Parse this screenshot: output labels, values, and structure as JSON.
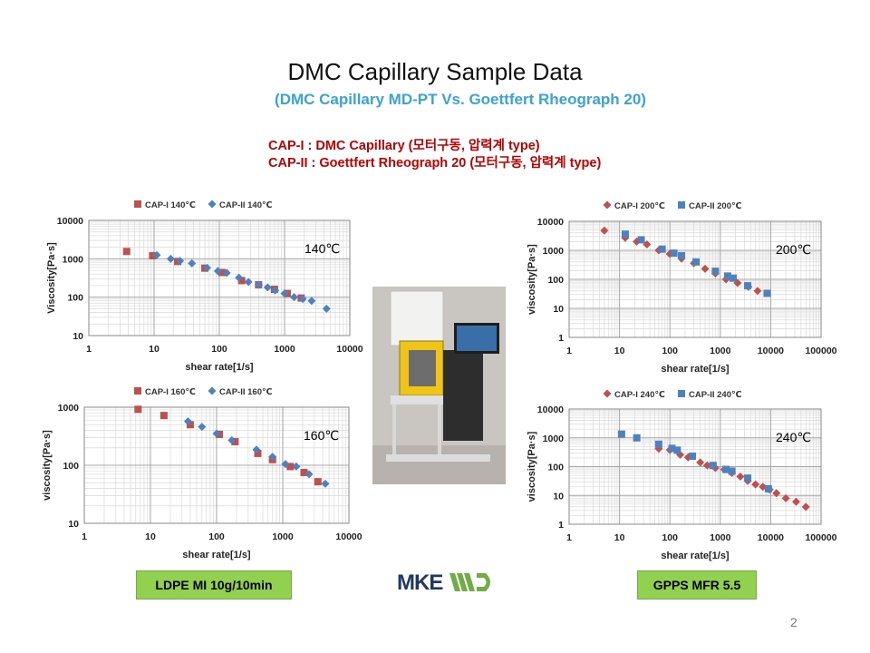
{
  "slide": {
    "title": "DMC Capillary Sample Data",
    "subtitle": "(DMC Capillary MD-PT Vs. Goettfert Rheograph 20)",
    "definitions": [
      "CAP-I  : DMC Capillary (모터구동, 압력계 type)",
      "CAP-II : Goettfert Rheograph 20 (모터구동, 압력계 type)"
    ],
    "left_badge": "LDPE MI 10g/10min",
    "right_badge": "GPPS MFR 5.5",
    "logo": "MKEWD",
    "page_number": "2"
  },
  "colors": {
    "cap1": "#c0504d",
    "cap2": "#4f81bd",
    "badge": "#92d050",
    "subtitle": "#3aa3d6",
    "definitions": "#c00000",
    "logo_dark": "#1f3864",
    "logo_green": "#70ad47"
  },
  "chart_data": [
    {
      "type": "scatter",
      "x_scale": "log",
      "y_scale": "log",
      "xlabel": "shear rate[1/s]",
      "ylabel": "Viscosity[Pa·s]",
      "xlim": [
        1,
        10000
      ],
      "ylim": [
        10,
        10000
      ],
      "x_ticks": [
        "1",
        "10",
        "100",
        "1000",
        "10000"
      ],
      "y_ticks": [
        "10",
        "100",
        "1000",
        "10000"
      ],
      "annotation": "140℃",
      "legend": "top",
      "grid": true,
      "series": [
        {
          "name": "CAP-I 140℃",
          "marker": "square",
          "points": [
            [
              3.8,
              1550
            ],
            [
              9.5,
              1200
            ],
            [
              23,
              850
            ],
            [
              60,
              570
            ],
            [
              110,
              440
            ],
            [
              220,
              270
            ],
            [
              400,
              210
            ],
            [
              700,
              160
            ],
            [
              1100,
              125
            ],
            [
              1800,
              95
            ]
          ]
        },
        {
          "name": "CAP-II 140℃",
          "marker": "diamond",
          "points": [
            [
              11,
              1250
            ],
            [
              18,
              1000
            ],
            [
              25,
              880
            ],
            [
              38,
              760
            ],
            [
              65,
              580
            ],
            [
              95,
              480
            ],
            [
              130,
              430
            ],
            [
              200,
              320
            ],
            [
              280,
              250
            ],
            [
              400,
              210
            ],
            [
              550,
              180
            ],
            [
              720,
              150
            ],
            [
              1000,
              125
            ],
            [
              1400,
              100
            ],
            [
              1900,
              90
            ],
            [
              2600,
              80
            ],
            [
              4400,
              50
            ]
          ]
        }
      ]
    },
    {
      "type": "scatter",
      "x_scale": "log",
      "y_scale": "log",
      "xlabel": "shear rate[1/s]",
      "ylabel": "viscosity[Pa·s]",
      "xlim": [
        1,
        10000
      ],
      "ylim": [
        10,
        1000
      ],
      "x_ticks": [
        "1",
        "10",
        "100",
        "1000",
        "10000"
      ],
      "y_ticks": [
        "10",
        "100",
        "1000"
      ],
      "annotation": "160℃",
      "legend": "top",
      "grid": true,
      "series": [
        {
          "name": "CAP-I 160℃",
          "marker": "square",
          "points": [
            [
              6.5,
              920
            ],
            [
              16,
              720
            ],
            [
              40,
              500
            ],
            [
              110,
              340
            ],
            [
              190,
              255
            ],
            [
              420,
              160
            ],
            [
              700,
              125
            ],
            [
              1300,
              95
            ],
            [
              2100,
              75
            ],
            [
              3400,
              52
            ]
          ]
        },
        {
          "name": "CAP-II 160℃",
          "marker": "diamond",
          "points": [
            [
              37,
              570
            ],
            [
              60,
              460
            ],
            [
              100,
              350
            ],
            [
              170,
              270
            ],
            [
              400,
              185
            ],
            [
              700,
              140
            ],
            [
              1100,
              105
            ],
            [
              1600,
              95
            ],
            [
              2500,
              70
            ],
            [
              4400,
              48
            ]
          ]
        }
      ]
    },
    {
      "type": "scatter",
      "x_scale": "log",
      "y_scale": "log",
      "xlabel": "shear rate[1/s]",
      "ylabel": "viscosity[Pa·s]",
      "xlim": [
        1,
        100000
      ],
      "ylim": [
        1,
        10000
      ],
      "x_ticks": [
        "1",
        "10",
        "100",
        "1000",
        "10000",
        "100000"
      ],
      "y_ticks": [
        "1",
        "10",
        "100",
        "1000",
        "10000"
      ],
      "annotation": "200℃",
      "legend": "top",
      "grid": true,
      "series": [
        {
          "name": "CAP-I 200℃",
          "marker": "diamond",
          "points": [
            [
              5,
              4800
            ],
            [
              13,
              2700
            ],
            [
              22,
              2000
            ],
            [
              35,
              1600
            ],
            [
              60,
              1000
            ],
            [
              100,
              750
            ],
            [
              170,
              520
            ],
            [
              300,
              360
            ],
            [
              500,
              230
            ],
            [
              800,
              160
            ],
            [
              1300,
              100
            ],
            [
              2200,
              75
            ],
            [
              3600,
              55
            ],
            [
              5500,
              40
            ]
          ]
        },
        {
          "name": "CAP-II 200℃",
          "marker": "square",
          "points": [
            [
              13,
              3600
            ],
            [
              27,
              2300
            ],
            [
              70,
              1100
            ],
            [
              120,
              800
            ],
            [
              170,
              650
            ],
            [
              330,
              400
            ],
            [
              800,
              190
            ],
            [
              1400,
              130
            ],
            [
              1800,
              110
            ],
            [
              3500,
              60
            ],
            [
              8500,
              33
            ]
          ]
        }
      ]
    },
    {
      "type": "scatter",
      "x_scale": "log",
      "y_scale": "log",
      "xlabel": "shear rate[1/s]",
      "ylabel": "viscosity[Pa·s]",
      "xlim": [
        1,
        100000
      ],
      "ylim": [
        1,
        10000
      ],
      "x_ticks": [
        "1",
        "10",
        "100",
        "1000",
        "10000",
        "100000"
      ],
      "y_ticks": [
        "1",
        "10",
        "100",
        "1000",
        "10000"
      ],
      "annotation": "240℃",
      "legend": "top",
      "grid": true,
      "series": [
        {
          "name": "CAP-I 240℃",
          "marker": "diamond",
          "points": [
            [
              60,
              420
            ],
            [
              100,
              380
            ],
            [
              160,
              260
            ],
            [
              230,
              210
            ],
            [
              400,
              140
            ],
            [
              550,
              110
            ],
            [
              800,
              90
            ],
            [
              1200,
              80
            ],
            [
              1700,
              60
            ],
            [
              2500,
              45
            ],
            [
              3500,
              32
            ],
            [
              5000,
              24
            ],
            [
              7000,
              20
            ],
            [
              9500,
              16
            ],
            [
              13000,
              12
            ],
            [
              20000,
              8
            ],
            [
              32000,
              6
            ],
            [
              50000,
              4
            ]
          ]
        },
        {
          "name": "CAP-II 240℃",
          "marker": "square",
          "points": [
            [
              11,
              1350
            ],
            [
              22,
              1000
            ],
            [
              60,
              600
            ],
            [
              110,
              430
            ],
            [
              140,
              370
            ],
            [
              280,
              230
            ],
            [
              720,
              110
            ],
            [
              1300,
              80
            ],
            [
              1700,
              70
            ],
            [
              3500,
              40
            ],
            [
              9000,
              17
            ]
          ]
        }
      ]
    }
  ]
}
